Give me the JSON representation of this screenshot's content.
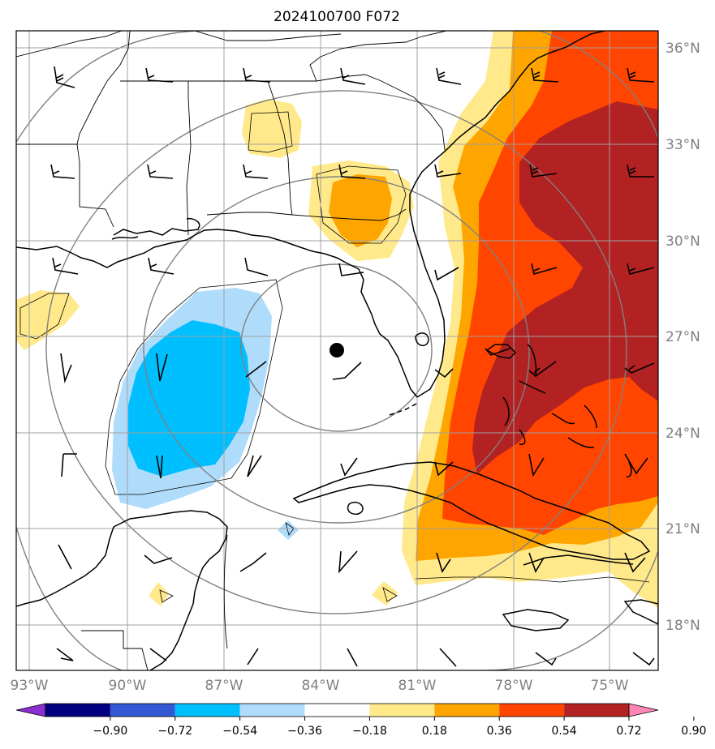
{
  "title": "2024100700 F072",
  "lat_labels": [
    "36°N",
    "33°N",
    "30°N",
    "27°N",
    "24°N",
    "21°N",
    "18°N"
  ],
  "lon_labels": [
    "93°W",
    "90°W",
    "87°W",
    "84°W",
    "81°W",
    "78°W",
    "75°W"
  ],
  "colorbar": {
    "ticks": [
      "−0.90",
      "−0.72",
      "−0.54",
      "−0.36",
      "−0.18",
      "0.18",
      "0.36",
      "0.54",
      "0.72",
      "0.90"
    ],
    "colors": [
      "#8b2fd2",
      "#000080",
      "#3358d4",
      "#00bfff",
      "#b0dcfb",
      "#ffffff",
      "#ffe98b",
      "#ffa500",
      "#ff4500",
      "#b22222",
      "#ff85b4"
    ]
  },
  "map": {
    "center_marker": "storm-center-dot",
    "fill_colors": {
      "light_yellow": "#ffe98b",
      "orange": "#ffa500",
      "red_orange": "#ff4500",
      "dark_red": "#b22222",
      "light_blue": "#b0dcfb",
      "deep_sky_blue": "#00bfff"
    }
  }
}
